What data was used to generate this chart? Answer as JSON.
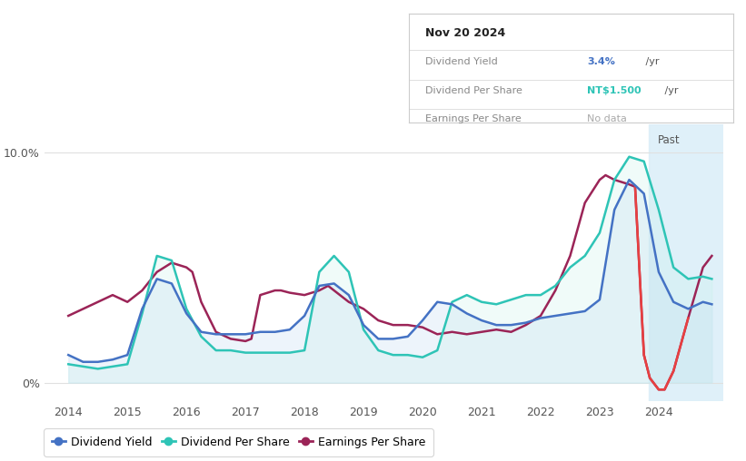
{
  "tooltip": {
    "date": "Nov 20 2024",
    "dividend_yield_label": "Dividend Yield",
    "dividend_yield_value": "3.4%",
    "dividend_yield_unit": " /yr",
    "dividend_per_share_label": "Dividend Per Share",
    "dividend_per_share_value": "NT$1.500",
    "dividend_per_share_unit": " /yr",
    "earnings_per_share_label": "Earnings Per Share",
    "earnings_per_share_value": "No data"
  },
  "past_label": "Past",
  "past_start_x": 2023.83,
  "colors": {
    "dividend_yield": "#4472c4",
    "dividend_per_share": "#2ec4b6",
    "earnings_per_share": "#9b2457",
    "fill_dy": "#cce0f5",
    "fill_dps": "#c5f0eb",
    "past_bg": "#daeef8",
    "grid": "#e0e0e0",
    "tooltip_border": "#cccccc",
    "tooltip_value_yield": "#4472c4",
    "tooltip_value_dps": "#2ec4b6",
    "tooltip_value_eps": "#aaaaaa",
    "eps_negative": "#e84040"
  },
  "dividend_yield_x": [
    2014.0,
    2014.25,
    2014.5,
    2014.75,
    2015.0,
    2015.25,
    2015.5,
    2015.75,
    2016.0,
    2016.25,
    2016.5,
    2016.75,
    2017.0,
    2017.25,
    2017.5,
    2017.75,
    2018.0,
    2018.25,
    2018.5,
    2018.75,
    2019.0,
    2019.25,
    2019.5,
    2019.75,
    2020.0,
    2020.25,
    2020.5,
    2020.75,
    2021.0,
    2021.25,
    2021.5,
    2021.75,
    2022.0,
    2022.25,
    2022.5,
    2022.75,
    2023.0,
    2023.25,
    2023.5,
    2023.75,
    2024.0,
    2024.25,
    2024.5,
    2024.75,
    2024.9
  ],
  "dividend_yield_y": [
    1.2,
    0.9,
    0.9,
    1.0,
    1.2,
    3.2,
    4.5,
    4.3,
    3.0,
    2.2,
    2.1,
    2.1,
    2.1,
    2.2,
    2.2,
    2.3,
    2.9,
    4.2,
    4.3,
    3.8,
    2.5,
    1.9,
    1.9,
    2.0,
    2.7,
    3.5,
    3.4,
    3.0,
    2.7,
    2.5,
    2.5,
    2.6,
    2.8,
    2.9,
    3.0,
    3.1,
    3.6,
    7.5,
    8.8,
    8.2,
    4.8,
    3.5,
    3.2,
    3.5,
    3.4
  ],
  "dividend_per_share_x": [
    2014.0,
    2014.25,
    2014.5,
    2014.75,
    2015.0,
    2015.25,
    2015.5,
    2015.75,
    2016.0,
    2016.25,
    2016.5,
    2016.75,
    2017.0,
    2017.25,
    2017.5,
    2017.75,
    2018.0,
    2018.25,
    2018.5,
    2018.75,
    2019.0,
    2019.25,
    2019.5,
    2019.75,
    2020.0,
    2020.25,
    2020.5,
    2020.75,
    2021.0,
    2021.25,
    2021.5,
    2021.75,
    2022.0,
    2022.25,
    2022.5,
    2022.75,
    2023.0,
    2023.25,
    2023.5,
    2023.75,
    2024.0,
    2024.25,
    2024.5,
    2024.75,
    2024.9
  ],
  "dividend_per_share_y": [
    0.8,
    0.7,
    0.6,
    0.7,
    0.8,
    3.0,
    5.5,
    5.3,
    3.2,
    2.0,
    1.4,
    1.4,
    1.3,
    1.3,
    1.3,
    1.3,
    1.4,
    4.8,
    5.5,
    4.8,
    2.3,
    1.4,
    1.2,
    1.2,
    1.1,
    1.4,
    3.5,
    3.8,
    3.5,
    3.4,
    3.6,
    3.8,
    3.8,
    4.2,
    5.0,
    5.5,
    6.5,
    8.8,
    9.8,
    9.6,
    7.5,
    5.0,
    4.5,
    4.6,
    4.5
  ],
  "earnings_per_share_x": [
    2014.0,
    2014.25,
    2014.5,
    2014.75,
    2015.0,
    2015.25,
    2015.5,
    2015.75,
    2016.0,
    2016.1,
    2016.25,
    2016.5,
    2016.75,
    2017.0,
    2017.1,
    2017.25,
    2017.5,
    2017.6,
    2017.75,
    2018.0,
    2018.25,
    2018.4,
    2018.5,
    2018.75,
    2019.0,
    2019.25,
    2019.5,
    2019.75,
    2020.0,
    2020.25,
    2020.5,
    2020.75,
    2021.0,
    2021.25,
    2021.5,
    2021.75,
    2022.0,
    2022.25,
    2022.5,
    2022.75,
    2023.0,
    2023.1,
    2023.25,
    2023.5,
    2023.6,
    2023.75,
    2023.85,
    2024.0,
    2024.1,
    2024.25,
    2024.5,
    2024.75,
    2024.9
  ],
  "earnings_per_share_y": [
    2.9,
    3.2,
    3.5,
    3.8,
    3.5,
    4.0,
    4.8,
    5.2,
    5.0,
    4.8,
    3.5,
    2.2,
    1.9,
    1.8,
    1.9,
    3.8,
    4.0,
    4.0,
    3.9,
    3.8,
    4.0,
    4.2,
    4.0,
    3.5,
    3.2,
    2.7,
    2.5,
    2.5,
    2.4,
    2.1,
    2.2,
    2.1,
    2.2,
    2.3,
    2.2,
    2.5,
    2.9,
    4.0,
    5.5,
    7.8,
    8.8,
    9.0,
    8.8,
    8.6,
    8.5,
    1.2,
    0.2,
    -0.3,
    -0.3,
    0.5,
    2.8,
    5.0,
    5.5
  ],
  "xmin": 2013.6,
  "xmax": 2025.1,
  "ymin": -0.8,
  "ymax": 11.2,
  "legend_entries": [
    "Dividend Yield",
    "Dividend Per Share",
    "Earnings Per Share"
  ]
}
